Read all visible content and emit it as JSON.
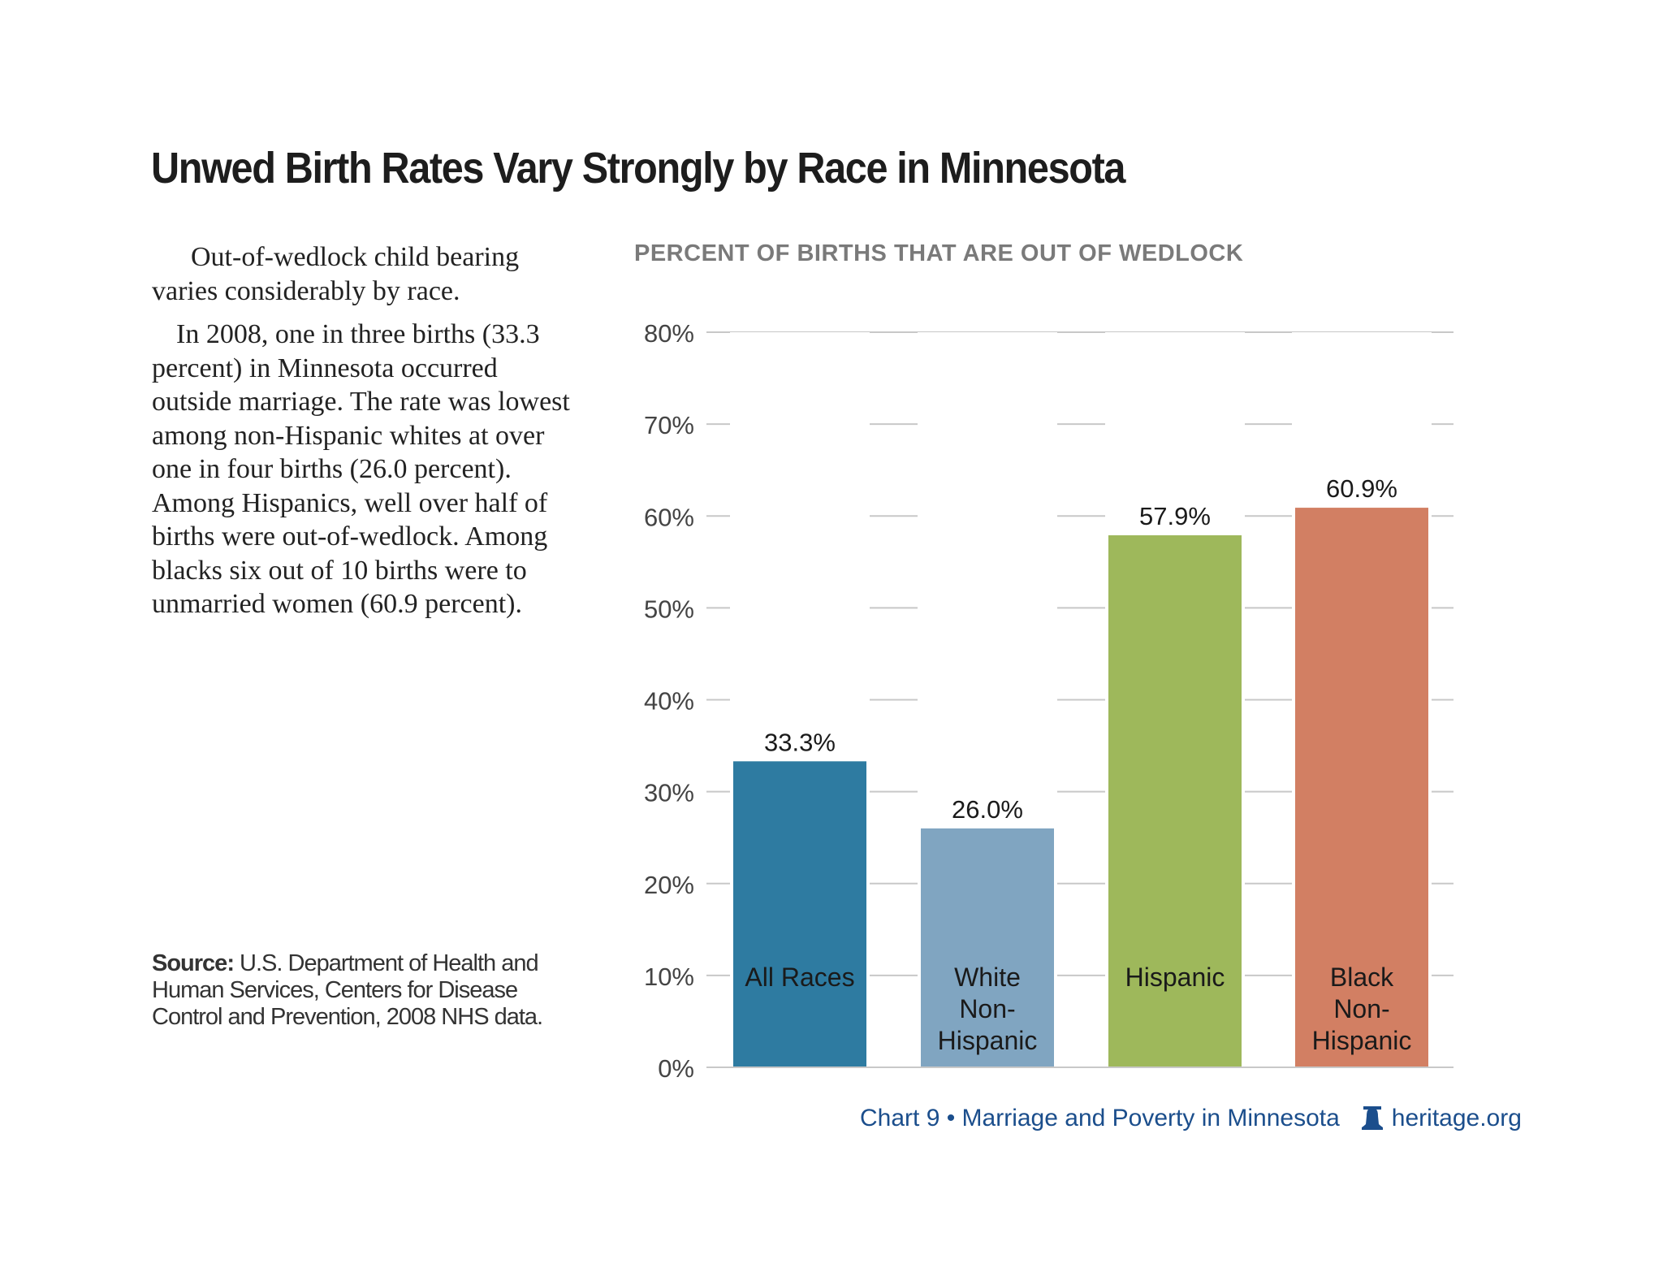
{
  "title": "Unwed Birth Rates Vary Strongly by Race in Minnesota",
  "body": {
    "paragraphs": [
      "Out-of-wedlock child bearing varies considerably by race.",
      "In 2008, one in three births (33.3 percent) in Minnesota occurred outside marriage. The rate was lowest among non-Hispanic whites at over one in four births (26.0 percent). Among Hispanics, well over half of births were out-of-wedlock. Among blacks six out of 10 births were to unmarried women (60.9 percent)."
    ]
  },
  "source": {
    "label": "Source:",
    "text": "U.S. Department of Health and Human Services, Centers for Disease Control and Prevention, 2008 NHS data."
  },
  "footer": {
    "chart_ref": "Chart 9 • Marriage and Poverty in Minnesota",
    "logo_icon": "liberty-bell-icon",
    "site": "heritage.org",
    "color": "#1b4e8c"
  },
  "chart_data": {
    "type": "bar",
    "title": "PERCENT OF BIRTHS THAT ARE OUT OF WEDLOCK",
    "categories": [
      "All Races",
      "White Non-Hispanic",
      "Hispanic",
      "Black Non-Hispanic"
    ],
    "category_label_lines": [
      [
        "All Races"
      ],
      [
        "White",
        "Non-",
        "Hispanic"
      ],
      [
        "Hispanic"
      ],
      [
        "Black",
        "Non-",
        "Hispanic"
      ]
    ],
    "values": [
      33.3,
      26.0,
      57.9,
      60.9
    ],
    "data_labels": [
      "33.3%",
      "26.0%",
      "57.9%",
      "60.9%"
    ],
    "colors": [
      "#2e7ba1",
      "#80a5c1",
      "#9eb85b",
      "#d27f63"
    ],
    "ylim": [
      0,
      80
    ],
    "yticks": [
      0,
      10,
      20,
      30,
      40,
      50,
      60,
      70,
      80
    ],
    "ytick_labels": [
      "0%",
      "10%",
      "20%",
      "30%",
      "40%",
      "50%",
      "60%",
      "70%",
      "80%"
    ],
    "grid": true,
    "xlabel": "",
    "ylabel": ""
  }
}
